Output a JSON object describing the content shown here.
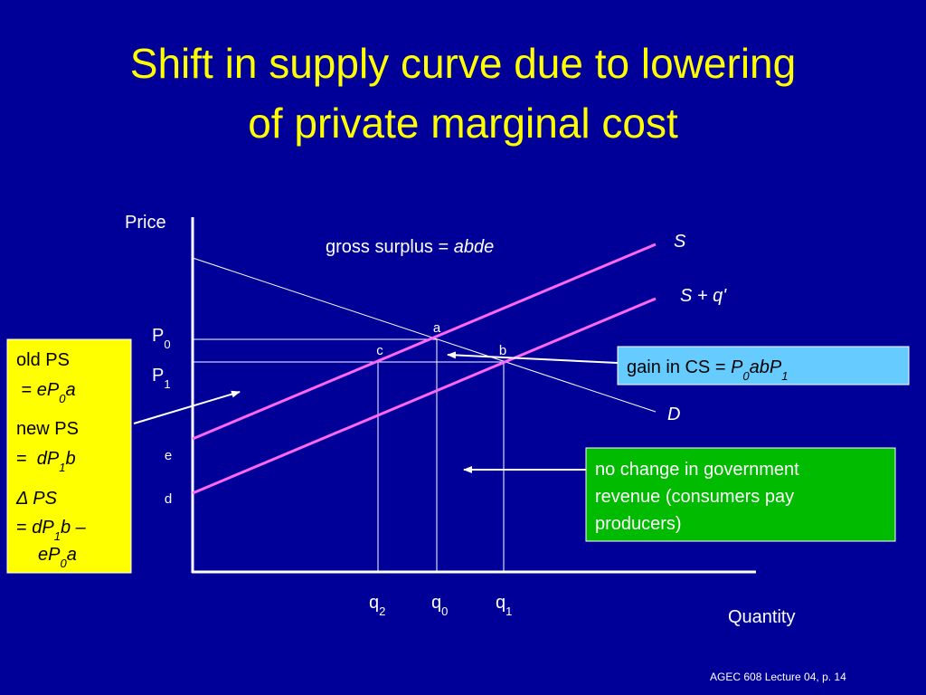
{
  "title": [
    "Shift in supply curve due to lowering",
    "of private marginal cost"
  ],
  "axes": {
    "y_label": "Price",
    "x_label": "Quantity"
  },
  "price_labels": [
    [
      {
        "text": "P"
      },
      {
        "text": "0",
        "style": "sub"
      }
    ],
    [
      {
        "text": "P"
      },
      {
        "text": "1",
        "style": "sub"
      }
    ]
  ],
  "quantity_labels": [
    [
      {
        "text": "q"
      },
      {
        "text": "2",
        "style": "sub"
      }
    ],
    [
      {
        "text": "q"
      },
      {
        "text": "0",
        "style": "sub"
      }
    ],
    [
      {
        "text": "q"
      },
      {
        "text": "1",
        "style": "sub"
      }
    ]
  ],
  "points": {
    "a": "a",
    "b": "b",
    "c": "c",
    "d": "d",
    "e": "e"
  },
  "curves": {
    "supply": "S",
    "shifted_supply": "S + q'",
    "demand": "D"
  },
  "gross_surplus": [
    {
      "text": "gross surplus = "
    },
    {
      "text": "abde",
      "style": "i"
    }
  ],
  "boxes": {
    "old_ps": [
      [
        {
          "text": "old PS"
        }
      ],
      [
        {
          "text": " = "
        },
        {
          "text": "eP",
          "style": "i"
        },
        {
          "text": "0",
          "style": "isub"
        },
        {
          "text": "a",
          "style": "i"
        }
      ],
      [
        {
          "text": "new PS"
        }
      ],
      [
        {
          "text": "=  "
        },
        {
          "text": "dP",
          "style": "i"
        },
        {
          "text": "1",
          "style": "isub"
        },
        {
          "text": "b",
          "style": "i"
        }
      ],
      [
        {
          "text": "Δ PS",
          "style": "i"
        }
      ],
      [
        {
          "text": "= "
        },
        {
          "text": "dP",
          "style": "i"
        },
        {
          "text": "1",
          "style": "isub"
        },
        {
          "text": "b",
          "style": "i"
        },
        {
          "text": " –"
        }
      ],
      [
        {
          "text": "eP",
          "style": "i"
        },
        {
          "text": "0",
          "style": "isub"
        },
        {
          "text": "a",
          "style": "i"
        }
      ]
    ],
    "gain_cs": [
      [
        {
          "text": "gain in CS = "
        },
        {
          "text": "P",
          "style": "i"
        },
        {
          "text": "0",
          "style": "isub"
        },
        {
          "text": "abP",
          "style": "i"
        },
        {
          "text": "1",
          "style": "isub"
        }
      ]
    ],
    "no_change": [
      [
        {
          "text": "no change in government"
        }
      ],
      [
        {
          "text": "revenue (consumers pay"
        }
      ],
      [
        {
          "text": "producers)"
        }
      ]
    ]
  },
  "footer": "AGEC 608 Lecture 04, p. 14"
}
